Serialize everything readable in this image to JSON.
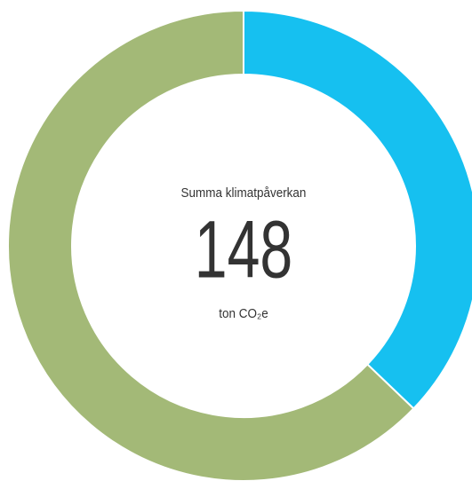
{
  "chart_data": {
    "type": "donut",
    "values": [
      55,
      93
    ],
    "colors": [
      "#16c0f0",
      "#a3b977"
    ],
    "center_label": "Summa klimatpåverkan",
    "center_value": "148",
    "center_unit": "ton CO₂e"
  }
}
